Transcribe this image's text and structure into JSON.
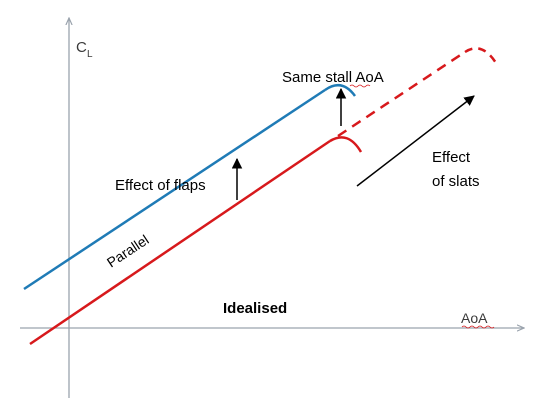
{
  "axes": {
    "y_label": "C",
    "y_label_subscript": "L",
    "x_label": "AoA"
  },
  "annotations": {
    "same_stall": "Same stall AoA",
    "effect_of_flaps": "Effect of flaps",
    "effect_of_slats_line1": "Effect",
    "effect_of_slats_line2": "of slats",
    "parallel": "Parallel",
    "idealised": "Idealised"
  },
  "colors": {
    "flaps_curve": "#1f7bb6",
    "base_curve": "#d7191c",
    "axes": "#9aa3ad",
    "arrows": "#000000"
  }
}
